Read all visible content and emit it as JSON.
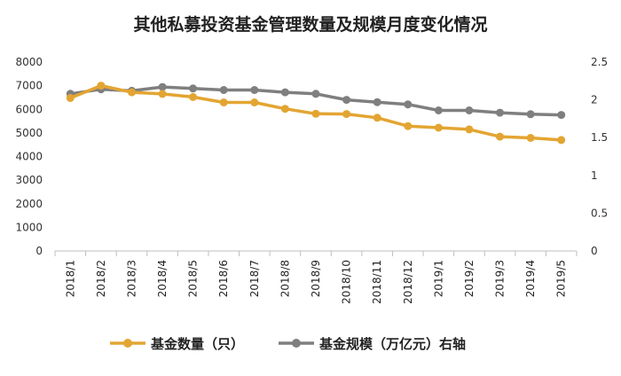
{
  "chart_data": {
    "type": "line",
    "title": "其他私募投资基金管理数量及规模月度变化情况",
    "categories": [
      "2018/1",
      "2018/2",
      "2018/3",
      "2018/4",
      "2018/5",
      "2018/6",
      "2018/7",
      "2018/8",
      "2018/9",
      "2018/10",
      "2018/11",
      "2018/12",
      "2019/1",
      "2019/2",
      "2019/3",
      "2019/4",
      "2019/5"
    ],
    "left_axis": {
      "ylim": [
        0,
        8000
      ],
      "ticks": [
        "0",
        "1000",
        "2000",
        "3000",
        "4000",
        "5000",
        "6000",
        "7000",
        "8000"
      ]
    },
    "right_axis": {
      "ylim": [
        0,
        2.5
      ],
      "ticks": [
        "0",
        "0.5",
        "1",
        "1.5",
        "2",
        "2.5"
      ]
    },
    "series": [
      {
        "name": "基金数量（只）",
        "axis": "left",
        "color": "#E3A532",
        "values": [
          6480,
          7000,
          6720,
          6650,
          6520,
          6290,
          6290,
          6020,
          5810,
          5800,
          5640,
          5290,
          5220,
          5150,
          4840,
          4790,
          4700
        ]
      },
      {
        "name": "基金规模（万亿元）右轴",
        "axis": "right",
        "color": "#7F7F7F",
        "values": [
          2.08,
          2.14,
          2.12,
          2.17,
          2.15,
          2.13,
          2.13,
          2.1,
          2.08,
          2.0,
          1.97,
          1.94,
          1.86,
          1.86,
          1.83,
          1.81,
          1.8
        ]
      }
    ],
    "grid": false,
    "legend_position": "bottom"
  }
}
